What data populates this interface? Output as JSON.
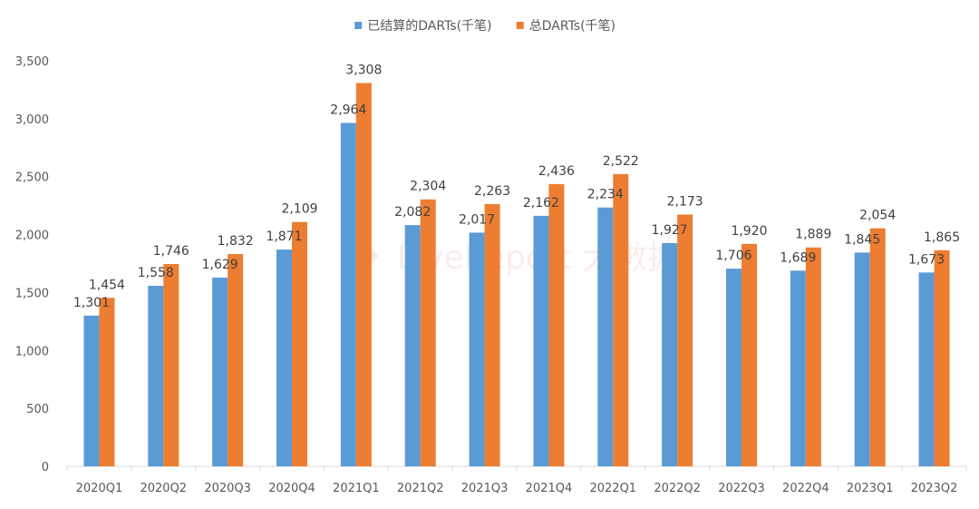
{
  "chart_data": {
    "type": "bar",
    "title": "",
    "xlabel": "",
    "ylabel": "",
    "ylim": [
      0,
      3500
    ],
    "yticks": [
      0,
      500,
      1000,
      1500,
      2000,
      2500,
      3000,
      3500
    ],
    "ytick_labels": [
      "0",
      "500",
      "1,000",
      "1,500",
      "2,000",
      "2,500",
      "3,000",
      "3,500"
    ],
    "grid": false,
    "legend_position": "top-center",
    "categories": [
      "2020Q1",
      "2020Q2",
      "2020Q3",
      "2020Q4",
      "2021Q1",
      "2021Q2",
      "2021Q3",
      "2021Q4",
      "2022Q1",
      "2022Q2",
      "2022Q3",
      "2022Q4",
      "2023Q1",
      "2023Q2"
    ],
    "series": [
      {
        "name": "已结算的DARTs(千笔)",
        "color": "#5B9BD5",
        "values": [
          1301,
          1558,
          1629,
          1871,
          2964,
          2082,
          2017,
          2162,
          2234,
          1927,
          1706,
          1689,
          1845,
          1673
        ],
        "labels": [
          "1,301",
          "1,558",
          "1,629",
          "1,871",
          "2,964",
          "2,082",
          "2,017",
          "2,162",
          "2,234",
          "1,927",
          "1,706",
          "1,689",
          "1,845",
          "1,673"
        ]
      },
      {
        "name": "总DARTs(千笔)",
        "color": "#ED7D31",
        "values": [
          1454,
          1746,
          1832,
          2109,
          3308,
          2304,
          2263,
          2436,
          2522,
          2173,
          1920,
          1889,
          2054,
          1865
        ],
        "labels": [
          "1,454",
          "1,746",
          "1,832",
          "2,109",
          "3,308",
          "2,304",
          "2,263",
          "2,436",
          "2,522",
          "2,173",
          "1,920",
          "1,889",
          "2,054",
          "1,865"
        ]
      }
    ]
  },
  "watermark": "LiveReport 大數據"
}
